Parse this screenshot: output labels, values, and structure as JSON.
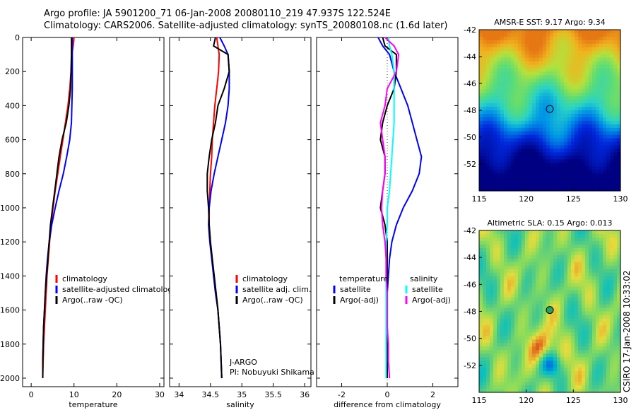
{
  "header": {
    "title_line1": "Argo profile: JA 5901200_71 06-Jan-2008 20080110_219 47.937S 122.524E",
    "title_line2": "Climatology: CARS2006. Satellite-adjusted climatology: synTS_20080108.nc (1.6d later)"
  },
  "side_label": "CSIRO 17-Jan-2008 10:33:02",
  "colors": {
    "climatology": "#ff0000",
    "satellite": "#0000ff",
    "argo": "#000000",
    "salinity_satellite": "#00ffff",
    "salinity_argo": "#ff00ff"
  },
  "chart_data": [
    {
      "type": "line",
      "xlabel": "temperature",
      "ylim": [
        2050,
        0
      ],
      "yticks": [
        0,
        200,
        400,
        600,
        800,
        1000,
        1200,
        1400,
        1600,
        1800,
        2000
      ],
      "xlim": [
        -2,
        31
      ],
      "xticks": [
        0,
        10,
        20,
        30
      ],
      "legend": [
        "climatology",
        "satellite-adjusted climatology",
        "Argo(..raw -QC)"
      ],
      "legend_position": "lower-right",
      "series": [
        {
          "name": "climatology",
          "color": "#ff0000",
          "x": [
            10.0,
            9.8,
            9.5,
            9.3,
            9.0,
            8.6,
            8.0,
            7.4,
            6.8,
            6.2,
            5.6,
            5.1,
            4.7,
            4.3,
            4.0,
            3.7,
            3.5,
            3.3,
            3.1,
            2.9,
            2.8,
            2.7
          ],
          "y": [
            0,
            50,
            100,
            200,
            300,
            400,
            500,
            600,
            700,
            800,
            900,
            1000,
            1100,
            1200,
            1300,
            1400,
            1500,
            1600,
            1700,
            1800,
            1900,
            2000
          ]
        },
        {
          "name": "satellite-adjusted climatology",
          "color": "#0000ff",
          "x": [
            9.6,
            9.6,
            9.6,
            9.6,
            9.6,
            9.5,
            9.4,
            9.0,
            8.3,
            7.5,
            6.5,
            5.6,
            4.8,
            4.2,
            3.8,
            3.5,
            3.3,
            3.1,
            2.9,
            2.8,
            2.7,
            2.7
          ],
          "y": [
            0,
            50,
            100,
            200,
            300,
            400,
            500,
            600,
            700,
            800,
            900,
            1000,
            1100,
            1200,
            1300,
            1400,
            1500,
            1600,
            1700,
            1800,
            1900,
            2000
          ]
        },
        {
          "name": "Argo(..raw -QC)",
          "color": "#000000",
          "x": [
            9.4,
            9.4,
            9.4,
            9.3,
            9.2,
            8.8,
            8.2,
            7.2,
            6.5,
            6.0,
            5.5,
            5.0,
            4.5,
            4.2,
            3.9,
            3.6,
            3.3,
            3.1,
            2.9,
            2.8,
            2.7,
            2.7
          ],
          "y": [
            0,
            50,
            100,
            200,
            300,
            400,
            500,
            600,
            700,
            800,
            900,
            1000,
            1100,
            1200,
            1300,
            1400,
            1500,
            1600,
            1700,
            1800,
            1900,
            2000
          ]
        }
      ]
    },
    {
      "type": "line",
      "xlabel": "salinity",
      "ylim": [
        2050,
        0
      ],
      "xlim": [
        33.85,
        36.1
      ],
      "xticks": [
        34,
        34.5,
        35,
        35.5,
        36
      ],
      "legend": [
        "climatology",
        "satellite adj. clim.",
        "Argo(..raw -QC)"
      ],
      "legend_position": "lower-right",
      "annotations": [
        "J-ARGO",
        "PI: Nobuyuki Shikama"
      ],
      "series": [
        {
          "name": "climatology",
          "color": "#ff0000",
          "x": [
            34.6,
            34.62,
            34.64,
            34.63,
            34.6,
            34.57,
            34.55,
            34.53,
            34.52,
            34.5,
            34.49,
            34.48,
            34.48,
            34.5,
            34.53,
            34.56,
            34.59,
            34.62,
            34.64,
            34.66,
            34.67,
            34.68
          ],
          "y": [
            0,
            50,
            100,
            200,
            300,
            400,
            500,
            600,
            700,
            800,
            900,
            1000,
            1100,
            1200,
            1300,
            1400,
            1500,
            1600,
            1700,
            1800,
            1900,
            2000
          ]
        },
        {
          "name": "satellite adj. clim.",
          "color": "#0000ff",
          "x": [
            34.65,
            34.72,
            34.78,
            34.8,
            34.8,
            34.78,
            34.74,
            34.68,
            34.62,
            34.56,
            34.51,
            34.48,
            34.47,
            34.49,
            34.52,
            34.55,
            34.58,
            34.62,
            34.64,
            34.66,
            34.67,
            34.68
          ],
          "y": [
            0,
            50,
            100,
            200,
            300,
            400,
            500,
            600,
            700,
            800,
            900,
            1000,
            1100,
            1200,
            1300,
            1400,
            1500,
            1600,
            1700,
            1800,
            1900,
            2000
          ]
        },
        {
          "name": "Argo(..raw -QC)",
          "color": "#000000",
          "x": [
            34.58,
            34.55,
            34.78,
            34.8,
            34.72,
            34.62,
            34.58,
            34.52,
            34.48,
            34.45,
            34.45,
            34.47,
            34.48,
            34.5,
            34.53,
            34.56,
            34.59,
            34.62,
            34.64,
            34.66,
            34.67,
            34.68
          ],
          "y": [
            0,
            50,
            100,
            200,
            300,
            400,
            500,
            600,
            700,
            800,
            900,
            1000,
            1100,
            1200,
            1300,
            1400,
            1500,
            1600,
            1700,
            1800,
            1900,
            2000
          ]
        }
      ]
    },
    {
      "type": "line",
      "xlabel": "difference from climatology",
      "ylim": [
        2050,
        0
      ],
      "xlim": [
        -3.1,
        3.1
      ],
      "xticks": [
        -2,
        0,
        2
      ],
      "legend": [
        "temperature",
        "satellite",
        "Argo(-adj)",
        "salinity",
        "satellite",
        "Argo(-adj)"
      ],
      "legend_position": "lower-right",
      "series": [
        {
          "name": "satellite",
          "group": "temperature",
          "color": "#0000ff",
          "x": [
            -0.4,
            -0.2,
            0.1,
            0.3,
            0.6,
            0.9,
            1.1,
            1.3,
            1.5,
            1.4,
            1.1,
            0.7,
            0.4,
            0.2,
            0.1,
            0.05,
            0.0,
            0.0,
            0.0,
            0.0,
            0.0,
            0.0
          ],
          "y": [
            0,
            50,
            100,
            200,
            300,
            400,
            500,
            600,
            700,
            800,
            900,
            1000,
            1100,
            1200,
            1300,
            1400,
            1500,
            1600,
            1700,
            1800,
            1900,
            2000
          ]
        },
        {
          "name": "Argo(-adj)",
          "group": "temperature",
          "color": "#000000",
          "x": [
            -0.2,
            -0.1,
            0.4,
            0.4,
            0.3,
            0.0,
            -0.2,
            -0.3,
            -0.1,
            -0.1,
            -0.2,
            -0.3,
            -0.1,
            0.0,
            0.0,
            0.0,
            0.0,
            0.0,
            0.0,
            0.0,
            0.0,
            0.0
          ],
          "y": [
            0,
            50,
            100,
            200,
            300,
            400,
            500,
            600,
            700,
            800,
            900,
            1000,
            1100,
            1200,
            1300,
            1400,
            1500,
            1600,
            1700,
            1800,
            1900,
            2000
          ]
        },
        {
          "name": "satellite",
          "group": "salinity",
          "color": "#00ffff",
          "x": [
            0.05,
            0.1,
            0.2,
            0.3,
            0.3,
            0.3,
            0.3,
            0.25,
            0.2,
            0.15,
            0.1,
            0.0,
            0.0,
            -0.05,
            -0.05,
            -0.05,
            -0.05,
            -0.05,
            -0.05,
            -0.05,
            -0.05,
            -0.05
          ],
          "y": [
            0,
            50,
            100,
            200,
            300,
            400,
            500,
            600,
            700,
            800,
            900,
            1000,
            1100,
            1200,
            1300,
            1400,
            1500,
            1600,
            1700,
            1800,
            1900,
            2000
          ]
        },
        {
          "name": "Argo(-adj)",
          "group": "salinity",
          "color": "#ff00ff",
          "x": [
            -0.1,
            0.3,
            0.5,
            0.4,
            0.0,
            -0.1,
            -0.3,
            -0.2,
            -0.1,
            -0.1,
            -0.2,
            -0.25,
            -0.2,
            -0.1,
            -0.05,
            -0.05,
            0.0,
            0.0,
            0.0,
            0.05,
            0.05,
            0.1
          ],
          "y": [
            0,
            50,
            100,
            200,
            300,
            400,
            500,
            600,
            700,
            800,
            900,
            1000,
            1100,
            1200,
            1300,
            1400,
            1500,
            1600,
            1700,
            1800,
            1900,
            2000
          ]
        }
      ]
    },
    {
      "type": "heatmap",
      "title": "AMSR-E SST: 9.17 Argo: 9.34",
      "xlim": [
        115,
        130
      ],
      "xticks": [
        115,
        120,
        125,
        130
      ],
      "ylim": [
        -54,
        -42
      ],
      "yticks": [
        -42,
        -44,
        -46,
        -48,
        -50,
        -52
      ],
      "marker": {
        "lon": 122.5,
        "lat": -47.9
      }
    },
    {
      "type": "heatmap",
      "title": "Altimetric SLA: 0.15 Argo: 0.013",
      "xlim": [
        115,
        130
      ],
      "xticks": [
        115,
        120,
        125,
        130
      ],
      "ylim": [
        -54,
        -42
      ],
      "yticks": [
        -42,
        -44,
        -46,
        -48,
        -50,
        -52
      ],
      "marker": {
        "lon": 122.5,
        "lat": -47.9
      }
    }
  ]
}
